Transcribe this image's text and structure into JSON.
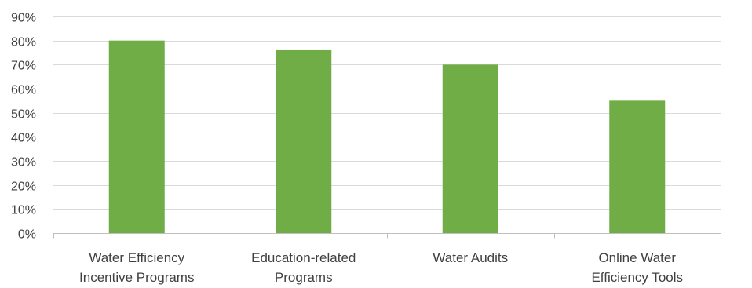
{
  "chart_data": {
    "type": "bar",
    "title": "",
    "xlabel": "",
    "ylabel": "",
    "categories": [
      [
        "Water Efficiency",
        "Incentive Programs"
      ],
      [
        "Education-related",
        "Programs"
      ],
      [
        "Water Audits"
      ],
      [
        "Online Water",
        "Efficiency Tools"
      ]
    ],
    "values": [
      80,
      76,
      70,
      55
    ],
    "ylim": [
      0,
      90
    ],
    "yticks": [
      0,
      10,
      20,
      30,
      40,
      50,
      60,
      70,
      80,
      90
    ],
    "ytick_labels": [
      "0%",
      "10%",
      "20%",
      "30%",
      "40%",
      "50%",
      "60%",
      "70%",
      "80%",
      "90%"
    ],
    "grid": true,
    "legend": "none",
    "bar_color": "#70ad47"
  }
}
